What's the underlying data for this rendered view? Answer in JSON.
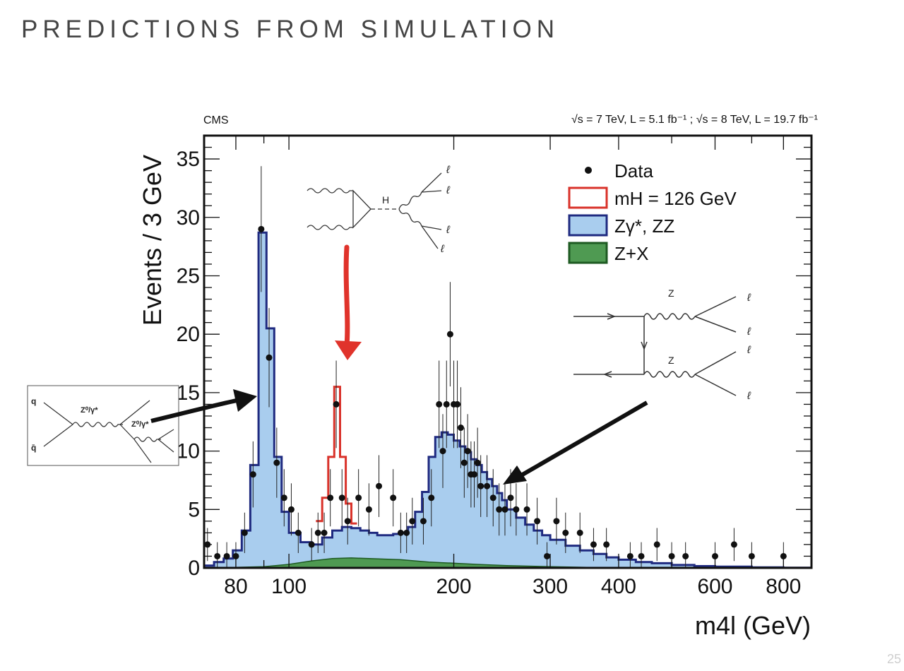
{
  "slide": {
    "title": "PREDICTIONS FROM SIMULATION",
    "page_number": "25"
  },
  "chart_data": {
    "type": "bar",
    "experiment_label": "CMS",
    "energy_label": "√s = 7 TeV, L = 5.1 fb⁻¹ ; √s = 8 TeV, L = 19.7 fb⁻¹",
    "xlabel": "m4l (GeV)",
    "ylabel": "Events / 3 GeV",
    "xscale": "log",
    "xlim": [
      70,
      900
    ],
    "ylim": [
      0,
      37
    ],
    "x_ticks": [
      80,
      100,
      200,
      300,
      400,
      600,
      800
    ],
    "y_ticks": [
      0,
      5,
      10,
      15,
      20,
      25,
      30,
      35
    ],
    "legend_position": "top-right",
    "legend": [
      {
        "label": "Data",
        "kind": "marker",
        "color": "#111111"
      },
      {
        "label": "mH = 126 GeV",
        "kind": "outline",
        "color": "#d9322a"
      },
      {
        "label": "Zγ*, ZZ",
        "kind": "filled",
        "color": "#a9cdee",
        "edge": "#1f2a80"
      },
      {
        "label": "Z+X",
        "kind": "filled",
        "color": "#4f9a52",
        "edge": "#1e5a22"
      }
    ],
    "series": [
      {
        "name": "Zγ*, ZZ",
        "x": [
          70,
          73,
          76,
          79,
          82,
          85,
          88,
          91,
          94,
          97,
          100,
          105,
          110,
          115,
          120,
          125,
          130,
          135,
          140,
          145,
          150,
          155,
          160,
          165,
          170,
          175,
          180,
          185,
          190,
          195,
          200,
          205,
          210,
          215,
          220,
          225,
          230,
          235,
          240,
          245,
          250,
          260,
          270,
          280,
          290,
          300,
          320,
          340,
          360,
          380,
          400,
          430,
          460,
          500,
          550,
          600,
          700,
          800,
          900
        ],
        "values": [
          0.2,
          0.5,
          0.8,
          1.5,
          3.2,
          8.8,
          28.7,
          20.5,
          9.5,
          4.8,
          3.0,
          2.2,
          2.0,
          2.6,
          3.2,
          3.5,
          3.4,
          3.2,
          3.0,
          2.8,
          2.8,
          2.9,
          3.0,
          3.5,
          4.8,
          6.5,
          9.5,
          11.2,
          11.6,
          11.4,
          10.9,
          10.4,
          9.9,
          9.3,
          8.8,
          8.2,
          7.6,
          7.0,
          6.4,
          5.8,
          5.0,
          4.3,
          3.7,
          3.2,
          2.8,
          2.4,
          1.9,
          1.5,
          1.2,
          0.9,
          0.7,
          0.5,
          0.4,
          0.25,
          0.15,
          0.1,
          0.05,
          0.02,
          0.0
        ]
      },
      {
        "name": "mH = 126 GeV",
        "x": [
          112,
          115,
          118,
          121,
          124,
          127,
          130
        ],
        "values": [
          4.0,
          6.0,
          9.5,
          15.5,
          9.5,
          5.5,
          3.8
        ]
      },
      {
        "name": "Z+X",
        "x": [
          80,
          90,
          100,
          110,
          120,
          130,
          140,
          150,
          160,
          170,
          180,
          190,
          200,
          220,
          250,
          300,
          350,
          400,
          450
        ],
        "values": [
          0.05,
          0.1,
          0.3,
          0.6,
          0.8,
          0.85,
          0.8,
          0.75,
          0.7,
          0.6,
          0.5,
          0.45,
          0.4,
          0.3,
          0.2,
          0.1,
          0.05,
          0.02,
          0.0
        ]
      },
      {
        "name": "Data",
        "x": [
          71,
          74,
          77,
          80,
          83,
          86,
          89,
          92,
          95,
          98,
          101,
          104,
          110,
          113,
          116,
          119,
          122,
          125,
          128,
          134,
          140,
          146,
          155,
          160,
          164,
          168,
          176,
          182,
          188,
          191,
          194,
          197,
          200,
          203,
          206,
          209,
          212,
          215,
          218,
          221,
          224,
          230,
          236,
          242,
          248,
          254,
          260,
          272,
          284,
          296,
          308,
          320,
          340,
          360,
          380,
          420,
          440,
          470,
          500,
          530,
          600,
          650,
          700,
          800
        ],
        "values": [
          2,
          1,
          1,
          1,
          3,
          8,
          29,
          18,
          9,
          6,
          5,
          3,
          2,
          3,
          3,
          6,
          14,
          6,
          4,
          6,
          5,
          7,
          6,
          3,
          3,
          4,
          4,
          6,
          14,
          10,
          14,
          20,
          14,
          14,
          12,
          9,
          10,
          8,
          8,
          9,
          7,
          7,
          6,
          5,
          5,
          6,
          5,
          5,
          4,
          1,
          4,
          3,
          3,
          2,
          2,
          1,
          1,
          2,
          1,
          1,
          1,
          2,
          1,
          1
        ]
      }
    ]
  },
  "diagrams": {
    "higgs": {
      "mediator_label": "H",
      "lepton_label": "ℓ"
    },
    "zz": {
      "boson_label": "Z",
      "lepton_label": "ℓ"
    },
    "drell_yan": {
      "quark_label": "q",
      "antiquark_label": "q̄",
      "boson_label": "Z⁰/γ*"
    }
  }
}
